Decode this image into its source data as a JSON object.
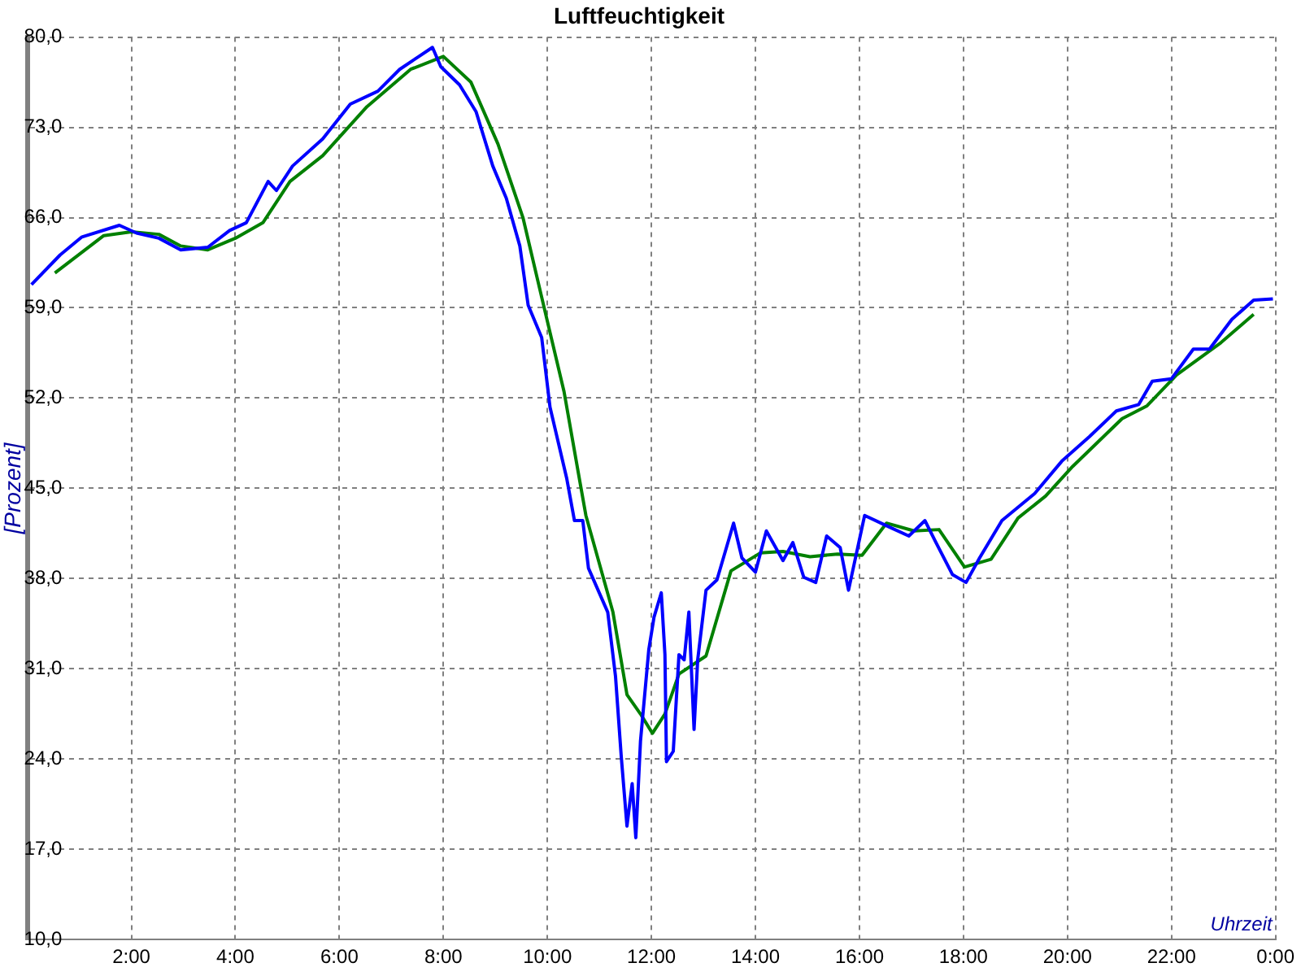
{
  "chart_data": {
    "type": "line",
    "title": "Luftfeuchtigkeit",
    "xlabel": "Uhrzeit",
    "ylabel": "[Prozent]",
    "xlim": [
      0,
      24
    ],
    "xticks": [
      {
        "value": 0,
        "label": null
      },
      {
        "value": 2,
        "label": "2:00"
      },
      {
        "value": 4,
        "label": "4:00"
      },
      {
        "value": 6,
        "label": "6:00"
      },
      {
        "value": 8,
        "label": "8:00"
      },
      {
        "value": 10,
        "label": "10:00"
      },
      {
        "value": 12,
        "label": "12:00"
      },
      {
        "value": 14,
        "label": "14:00"
      },
      {
        "value": 16,
        "label": "16:00"
      },
      {
        "value": 18,
        "label": "18:00"
      },
      {
        "value": 20,
        "label": "20:00"
      },
      {
        "value": 22,
        "label": "22:00"
      },
      {
        "value": 24,
        "label": "0:00"
      }
    ],
    "ylim": [
      10,
      80
    ],
    "yticks": [
      {
        "value": 10,
        "label": "10,0"
      },
      {
        "value": 17,
        "label": "17,0"
      },
      {
        "value": 24,
        "label": "24,0"
      },
      {
        "value": 31,
        "label": "31,0"
      },
      {
        "value": 38,
        "label": "38,0"
      },
      {
        "value": 45,
        "label": "45,0"
      },
      {
        "value": 52,
        "label": "52,0"
      },
      {
        "value": 59,
        "label": "59,0"
      },
      {
        "value": 66,
        "label": "66,0"
      },
      {
        "value": 73,
        "label": "73,0"
      },
      {
        "value": 80,
        "label": "80,0"
      }
    ],
    "grid": true,
    "legend": false,
    "marker": "none",
    "line_style": "solid",
    "series": [
      {
        "color": "#0000ff",
        "x": [
          0.08,
          0.63,
          1.05,
          1.77,
          2.1,
          2.53,
          2.95,
          3.47,
          3.89,
          4.21,
          4.63,
          4.79,
          5.1,
          5.68,
          6.21,
          6.74,
          7.16,
          7.53,
          7.79,
          7.95,
          8.31,
          8.63,
          8.95,
          9.21,
          9.47,
          9.63,
          9.89,
          10.05,
          10.37,
          10.52,
          10.68,
          10.79,
          11.16,
          11.31,
          11.42,
          11.53,
          11.63,
          11.7,
          11.79,
          11.95,
          12.05,
          12.19,
          12.26,
          12.29,
          12.42,
          12.53,
          12.63,
          12.72,
          12.82,
          12.89,
          13.05,
          13.26,
          13.58,
          13.74,
          14.0,
          14.21,
          14.53,
          14.72,
          14.93,
          15.16,
          15.37,
          15.63,
          15.79,
          16.1,
          16.52,
          16.95,
          17.26,
          17.47,
          17.79,
          18.05,
          18.31,
          18.74,
          19.37,
          19.89,
          20.42,
          20.94,
          21.37,
          21.63,
          22.0,
          22.42,
          22.73,
          23.16,
          23.58,
          23.95
        ],
        "values": [
          60.8,
          63.1,
          64.5,
          65.4,
          64.8,
          64.4,
          63.5,
          63.7,
          65.0,
          65.6,
          68.8,
          68.1,
          70.0,
          72.1,
          74.8,
          75.8,
          77.5,
          78.5,
          79.2,
          77.7,
          76.3,
          74.2,
          70.0,
          67.5,
          63.8,
          59.2,
          56.7,
          51.3,
          45.8,
          42.5,
          42.5,
          38.8,
          35.4,
          30.4,
          24.2,
          18.8,
          22.1,
          17.9,
          25.4,
          32.5,
          35.0,
          36.9,
          32.1,
          23.8,
          24.6,
          32.1,
          31.7,
          35.4,
          26.3,
          31.7,
          37.1,
          37.9,
          42.3,
          39.6,
          38.5,
          41.7,
          39.4,
          40.8,
          38.1,
          37.7,
          41.3,
          40.4,
          37.1,
          42.9,
          42.1,
          41.3,
          42.5,
          40.8,
          38.3,
          37.7,
          39.6,
          42.5,
          44.6,
          47.1,
          49.0,
          51.0,
          51.5,
          53.3,
          53.5,
          55.8,
          55.8,
          58.1,
          59.6,
          59.7
        ]
      },
      {
        "color": "#008000",
        "x": [
          0.53,
          1.47,
          2.0,
          2.53,
          2.95,
          3.47,
          4.0,
          4.53,
          5.05,
          5.68,
          6.53,
          7.37,
          8.0,
          8.53,
          9.05,
          9.53,
          9.95,
          10.32,
          10.63,
          10.74,
          11.26,
          11.53,
          11.79,
          12.02,
          12.26,
          12.53,
          13.05,
          13.53,
          14.1,
          14.53,
          15.05,
          15.58,
          16.05,
          16.52,
          17.05,
          17.53,
          18.02,
          18.53,
          19.05,
          19.58,
          20.1,
          21.05,
          21.53,
          22.1,
          22.95,
          23.58
        ],
        "values": [
          61.7,
          64.6,
          64.9,
          64.7,
          63.8,
          63.5,
          64.4,
          65.6,
          68.8,
          70.8,
          74.6,
          77.5,
          78.5,
          76.5,
          71.7,
          66.0,
          58.8,
          52.5,
          45.4,
          42.9,
          35.4,
          29.0,
          27.5,
          26.0,
          27.5,
          30.6,
          32.0,
          38.6,
          40.0,
          40.1,
          39.7,
          39.9,
          39.8,
          42.3,
          41.7,
          41.8,
          38.9,
          39.5,
          42.7,
          44.4,
          46.7,
          50.4,
          51.4,
          53.8,
          56.3,
          58.5
        ]
      }
    ]
  }
}
